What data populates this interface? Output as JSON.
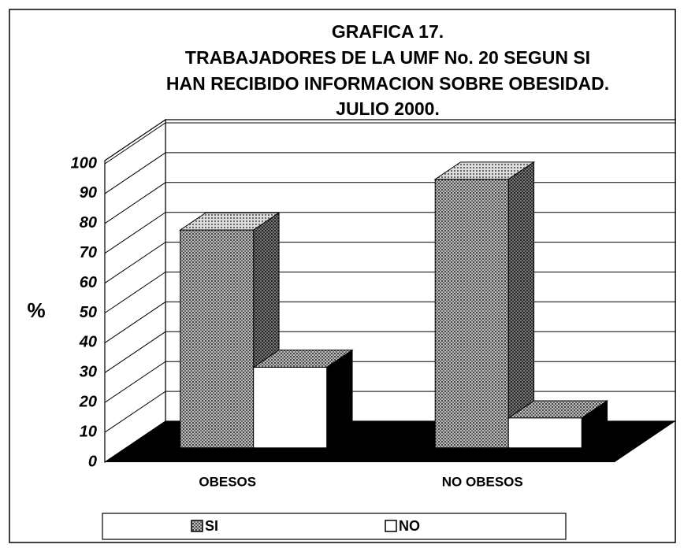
{
  "chart_data": {
    "type": "bar3d",
    "title": "GRAFICA 17.",
    "subtitle": [
      "TRABAJADORES DE LA UMF No. 20 SEGUN SI",
      "HAN RECIBIDO INFORMACION SOBRE OBESIDAD.",
      "JULIO 2000."
    ],
    "ylabel": "%",
    "categories": [
      "OBESOS",
      "NO OBESOS"
    ],
    "series": [
      {
        "name": "SI",
        "color": "#8c8c8c",
        "values": [
          73,
          90
        ]
      },
      {
        "name": "NO",
        "color": "#ffffff",
        "values": [
          27,
          10
        ]
      }
    ],
    "ylim": [
      0,
      100
    ],
    "yticks": [
      0,
      10,
      20,
      30,
      40,
      50,
      60,
      70,
      80,
      90,
      100
    ],
    "grid": true,
    "legend": "bottom"
  }
}
